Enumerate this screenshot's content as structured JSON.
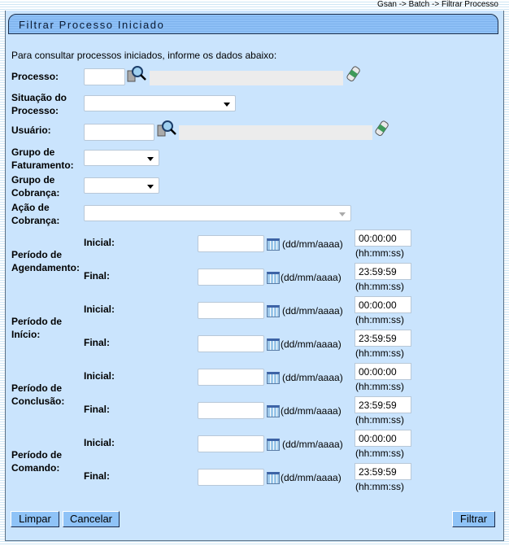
{
  "breadcrumb": "Gsan -> Batch -> Filtrar Processo",
  "title": "Filtrar Processo Iniciado",
  "intro": "Para consultar processos iniciados, informe os dados abaixo:",
  "fields": {
    "processo": {
      "label": "Processo:",
      "value": "",
      "description": ""
    },
    "situacao": {
      "label1": "Situação do",
      "label2": "Processo:",
      "selected": ""
    },
    "usuario": {
      "label": "Usuário:",
      "value": "",
      "description": ""
    },
    "grupo_faturamento": {
      "label1": "Grupo de",
      "label2": "Faturamento:",
      "selected": ""
    },
    "grupo_cobranca": {
      "label1": "Grupo de",
      "label2": "Cobrança:",
      "selected": ""
    },
    "acao_cobranca": {
      "label1": "Ação de",
      "label2": "Cobrança:",
      "selected": ""
    }
  },
  "periods": [
    {
      "label1": "Período de",
      "label2": "Agendamento:",
      "initial": {
        "label": "Inicial:",
        "date": "",
        "time": "00:00:00"
      },
      "final": {
        "label": "Final:",
        "date": "",
        "time": "23:59:59"
      }
    },
    {
      "label1": "Período de",
      "label2": "Início:",
      "initial": {
        "label": "Inicial:",
        "date": "",
        "time": "00:00:00"
      },
      "final": {
        "label": "Final:",
        "date": "",
        "time": "23:59:59"
      }
    },
    {
      "label1": "Período de",
      "label2": "Conclusão:",
      "initial": {
        "label": "Inicial:",
        "date": "",
        "time": "00:00:00"
      },
      "final": {
        "label": "Final:",
        "date": "",
        "time": "23:59:59"
      }
    },
    {
      "label1": "Período de",
      "label2": "Comando:",
      "initial": {
        "label": "Inicial:",
        "date": "",
        "time": "00:00:00"
      },
      "final": {
        "label": "Final:",
        "date": "",
        "time": "23:59:59"
      }
    }
  ],
  "date_hint": "(dd/mm/aaaa)",
  "time_hint": "(hh:mm:ss)",
  "buttons": {
    "limpar": "Limpar",
    "cancelar": "Cancelar",
    "filtrar": "Filtrar"
  },
  "icons": {
    "lookup": "magnifier-icon",
    "clear": "eraser-icon",
    "calendar": "calendar-icon"
  }
}
